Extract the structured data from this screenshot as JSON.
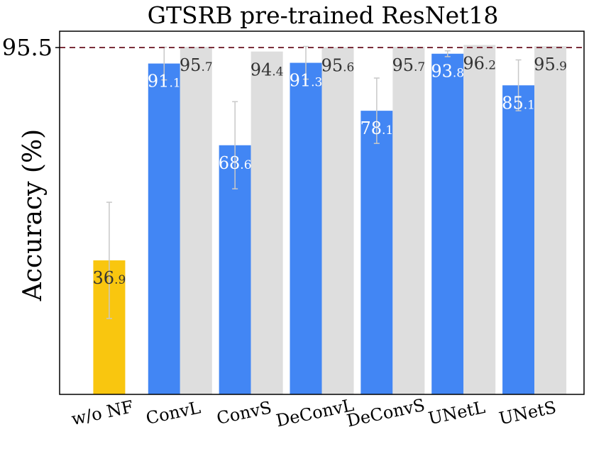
{
  "chart_data": {
    "type": "bar",
    "title": "GTSRB pre-trained ResNet18",
    "ylabel": "Accuracy (%)",
    "xlabel": "",
    "ylim": [
      0,
      100
    ],
    "yticks": [
      "95.5"
    ],
    "reference_line": {
      "value": 95.5,
      "style": "dashed",
      "color": "#7a2e3a"
    },
    "categories": [
      "w/o NF",
      "ConvL",
      "ConvS",
      "DeConvL",
      "DeConvS",
      "UNetL",
      "UNetS"
    ],
    "series": [
      {
        "values": [
          36.9,
          91.1,
          68.6,
          91.3,
          78.1,
          93.8,
          85.1
        ],
        "errors": [
          16.0,
          4.5,
          12.0,
          4.5,
          9.0,
          0.8,
          7.0
        ],
        "labels": [
          [
            "36",
            ".9"
          ],
          [
            "91",
            ".1"
          ],
          [
            "68",
            ".6"
          ],
          [
            "91",
            ".3"
          ],
          [
            "78",
            ".1"
          ],
          [
            "93",
            ".8"
          ],
          [
            "85",
            ".1"
          ]
        ],
        "colors": [
          "#f9c60f",
          "#4286f4",
          "#4286f4",
          "#4286f4",
          "#4286f4",
          "#4286f4",
          "#4286f4"
        ],
        "label_colors": [
          "#333333",
          "#ffffff",
          "#ffffff",
          "#ffffff",
          "#ffffff",
          "#ffffff",
          "#ffffff"
        ]
      },
      {
        "values": [
          null,
          95.7,
          94.4,
          95.6,
          95.7,
          96.2,
          95.9
        ],
        "labels": [
          null,
          [
            "95",
            ".7"
          ],
          [
            "94",
            ".4"
          ],
          [
            "95",
            ".6"
          ],
          [
            "95",
            ".7"
          ],
          [
            "96",
            ".2"
          ],
          [
            "95",
            ".9"
          ]
        ],
        "color": "#dedede",
        "label_color": "#333333"
      }
    ],
    "grid": false,
    "legend": "none",
    "colors": {
      "primary": "#4286f4",
      "baseline": "#f9c60f",
      "reference": "#dedede",
      "error_bar": "#c8c8c8",
      "dashed_line": "#7a2e3a"
    }
  }
}
